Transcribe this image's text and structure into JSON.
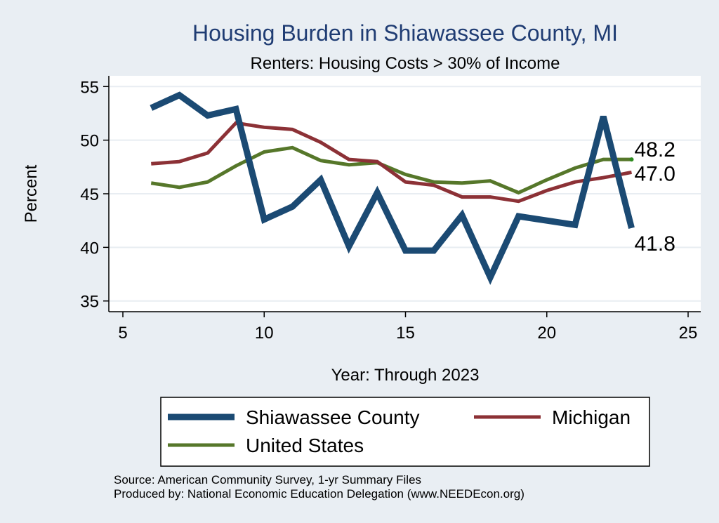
{
  "chart_data": {
    "type": "line",
    "title": "Housing Burden in Shiawassee County, MI",
    "subtitle": "Renters: Housing Costs > 30% of Income",
    "xlabel": "Year: Through 2023",
    "ylabel": "Percent",
    "xlim": [
      5,
      25
    ],
    "ylim": [
      34,
      56
    ],
    "xticks": [
      5,
      10,
      15,
      20,
      25
    ],
    "yticks": [
      35,
      40,
      45,
      50,
      55
    ],
    "grid": true,
    "series": [
      {
        "name": "Shiawassee County",
        "color": "#1b4a73",
        "x": [
          6,
          7,
          8,
          9,
          10,
          11,
          12,
          13,
          14,
          15,
          16,
          17,
          18,
          19,
          20,
          21,
          22,
          23
        ],
        "values": [
          53.0,
          54.2,
          52.3,
          52.9,
          42.6,
          43.8,
          46.3,
          40.1,
          45.1,
          39.7,
          39.7,
          43.0,
          37.2,
          42.9,
          42.5,
          42.1,
          52.2,
          41.8
        ],
        "end_label": "41.8"
      },
      {
        "name": "Michigan",
        "color": "#8c3136",
        "x": [
          6,
          7,
          8,
          9,
          10,
          11,
          12,
          13,
          14,
          15,
          16,
          17,
          18,
          19,
          20,
          21,
          22,
          23
        ],
        "values": [
          47.8,
          48.0,
          48.8,
          51.6,
          51.2,
          51.0,
          49.8,
          48.2,
          48.0,
          46.1,
          45.8,
          44.7,
          44.7,
          44.3,
          45.3,
          46.1,
          46.5,
          47.0
        ],
        "end_label": "47.0"
      },
      {
        "name": "United States",
        "color": "#56772a",
        "x": [
          6,
          7,
          8,
          9,
          10,
          11,
          12,
          13,
          14,
          15,
          16,
          17,
          18,
          19,
          20,
          21,
          22,
          23
        ],
        "values": [
          46.0,
          45.6,
          46.1,
          47.6,
          48.9,
          49.3,
          48.1,
          47.7,
          47.9,
          46.8,
          46.1,
          46.0,
          46.2,
          45.1,
          46.3,
          47.4,
          48.2,
          48.2
        ],
        "end_label": "48.2"
      }
    ]
  },
  "notes": {
    "source": "Source: American Community Survey, 1-yr Summary Files",
    "produced_by": "Produced by: National Economic Education Delegation (www.NEEDEcon.org)"
  }
}
